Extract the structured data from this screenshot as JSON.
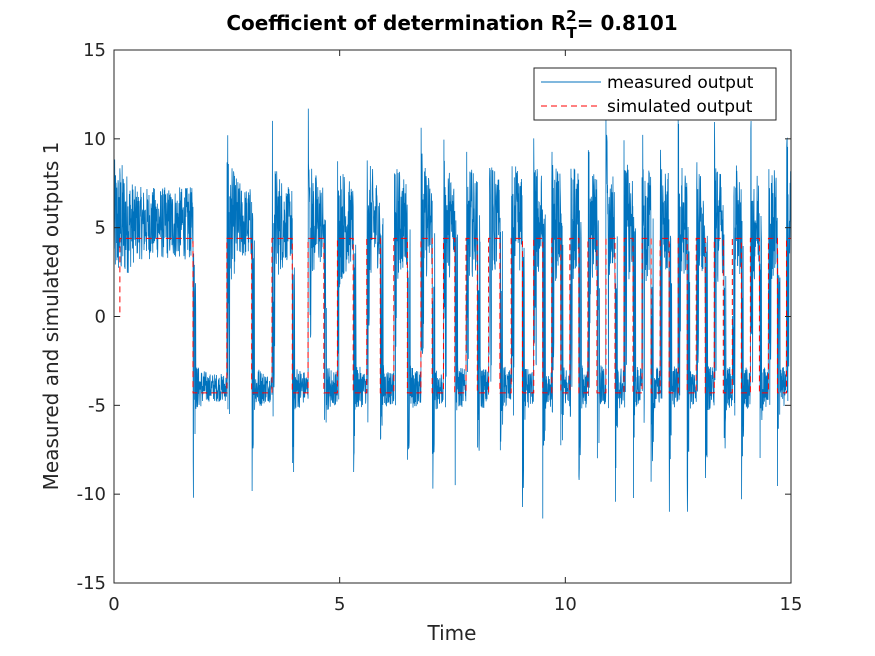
{
  "chart_data": {
    "type": "line",
    "title": {
      "prefix": "Coefficient of determination R",
      "superscript": "2",
      "subscript": "T",
      "suffix": "= 0.8101"
    },
    "xlabel": "Time",
    "ylabel": "Measured and simulated outputs 1",
    "xlim": [
      0,
      15
    ],
    "ylim": [
      -15,
      15
    ],
    "xticks": [
      0,
      5,
      10,
      15
    ],
    "yticks": [
      -15,
      -10,
      -5,
      0,
      5,
      10,
      15
    ],
    "grid": false,
    "legend_position": "top-right",
    "colors": {
      "measured": "#0072BD",
      "simulated": "#D95319",
      "simulated_line": "#FF0000"
    },
    "simulated_levels": {
      "high": 4.4,
      "low": -4.3
    },
    "simulated_switch_times": [
      0.13,
      1.75,
      2.5,
      3.05,
      3.5,
      3.95,
      4.3,
      4.65,
      4.95,
      5.3,
      5.6,
      5.9,
      6.2,
      6.5,
      6.8,
      7.05,
      7.3,
      7.55,
      7.8,
      8.05,
      8.3,
      8.55,
      8.8,
      9.05,
      9.3,
      9.5,
      9.7,
      9.9,
      10.1,
      10.3,
      10.5,
      10.7,
      10.9,
      11.1,
      11.3,
      11.5,
      11.7,
      11.9,
      12.1,
      12.3,
      12.5,
      12.7,
      12.9,
      13.1,
      13.3,
      13.5,
      13.7,
      13.9,
      14.1,
      14.3,
      14.5,
      14.7,
      14.9
    ],
    "measured_band": {
      "high_segment": [
        3.2,
        7.3
      ],
      "low_segment": [
        -4.8,
        -3.2
      ],
      "spike_max": 11.7,
      "spike_min": -11.5
    },
    "series": [
      {
        "name": "measured output",
        "style": "solid"
      },
      {
        "name": "simulated output",
        "style": "dashed"
      }
    ]
  }
}
